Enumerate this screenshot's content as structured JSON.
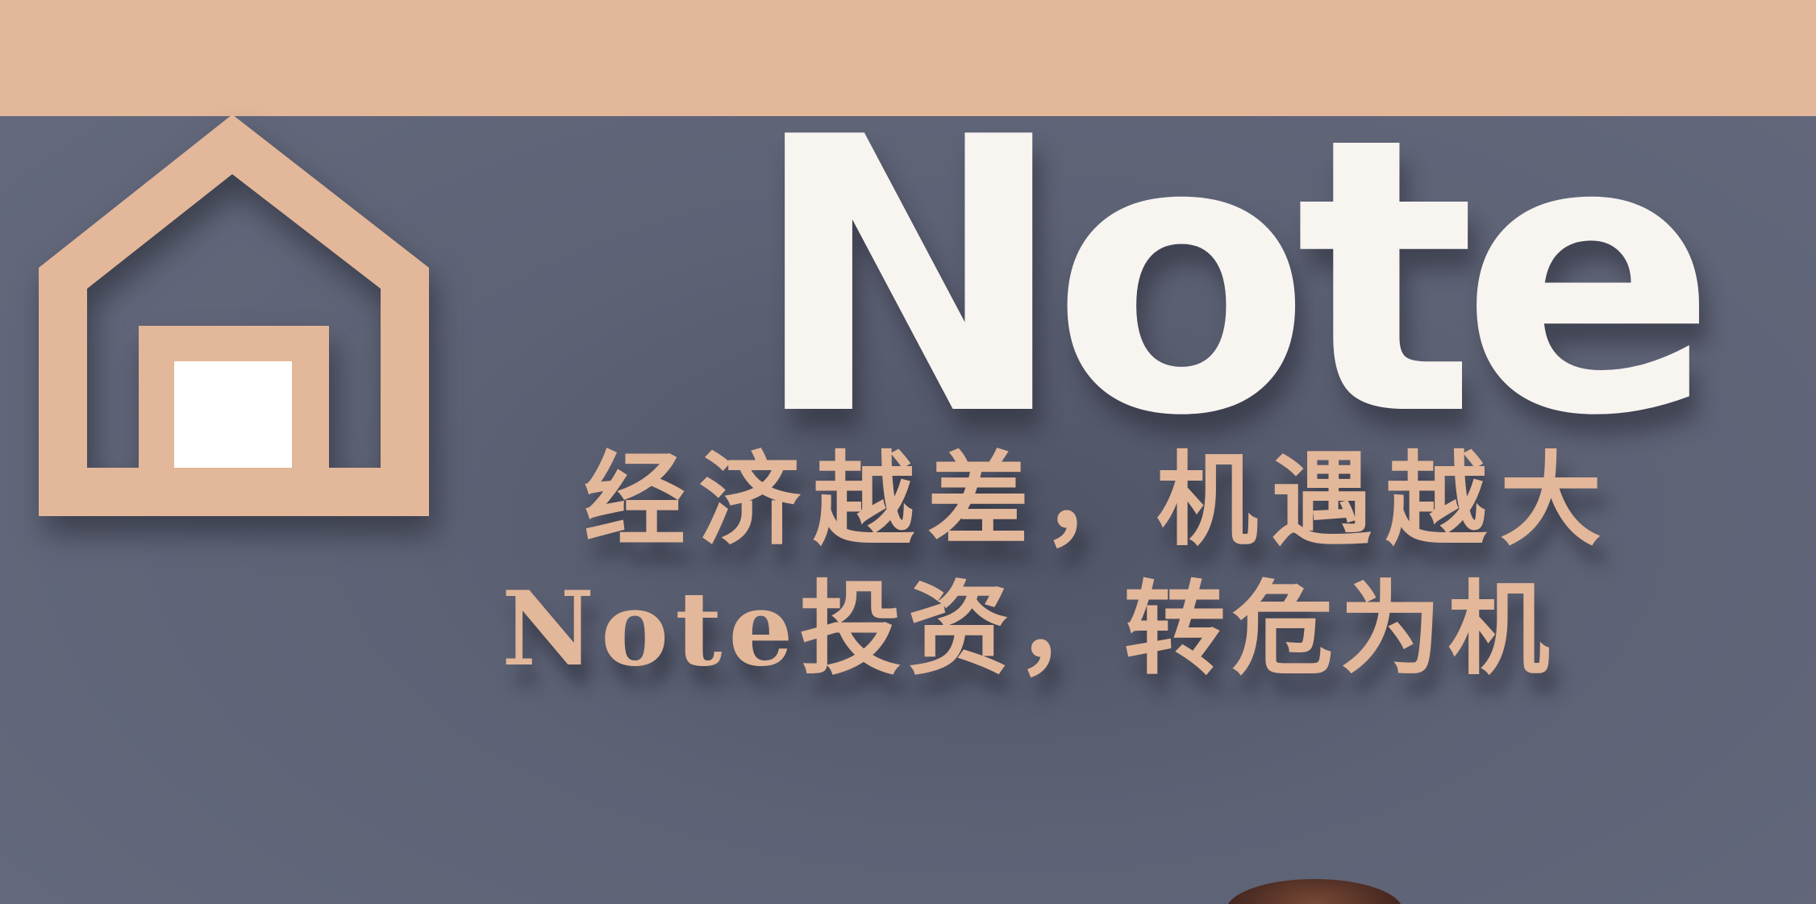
{
  "colors": {
    "background": "#61667a",
    "accent": "#e3b799",
    "title": "#f8f4f0",
    "logo_window": "#ffffff"
  },
  "logo": {
    "icon": "house-icon"
  },
  "brand": {
    "title": "Note"
  },
  "tagline": {
    "line1": "经济越差，机遇越大",
    "line2": "Note投资，转危为机"
  }
}
